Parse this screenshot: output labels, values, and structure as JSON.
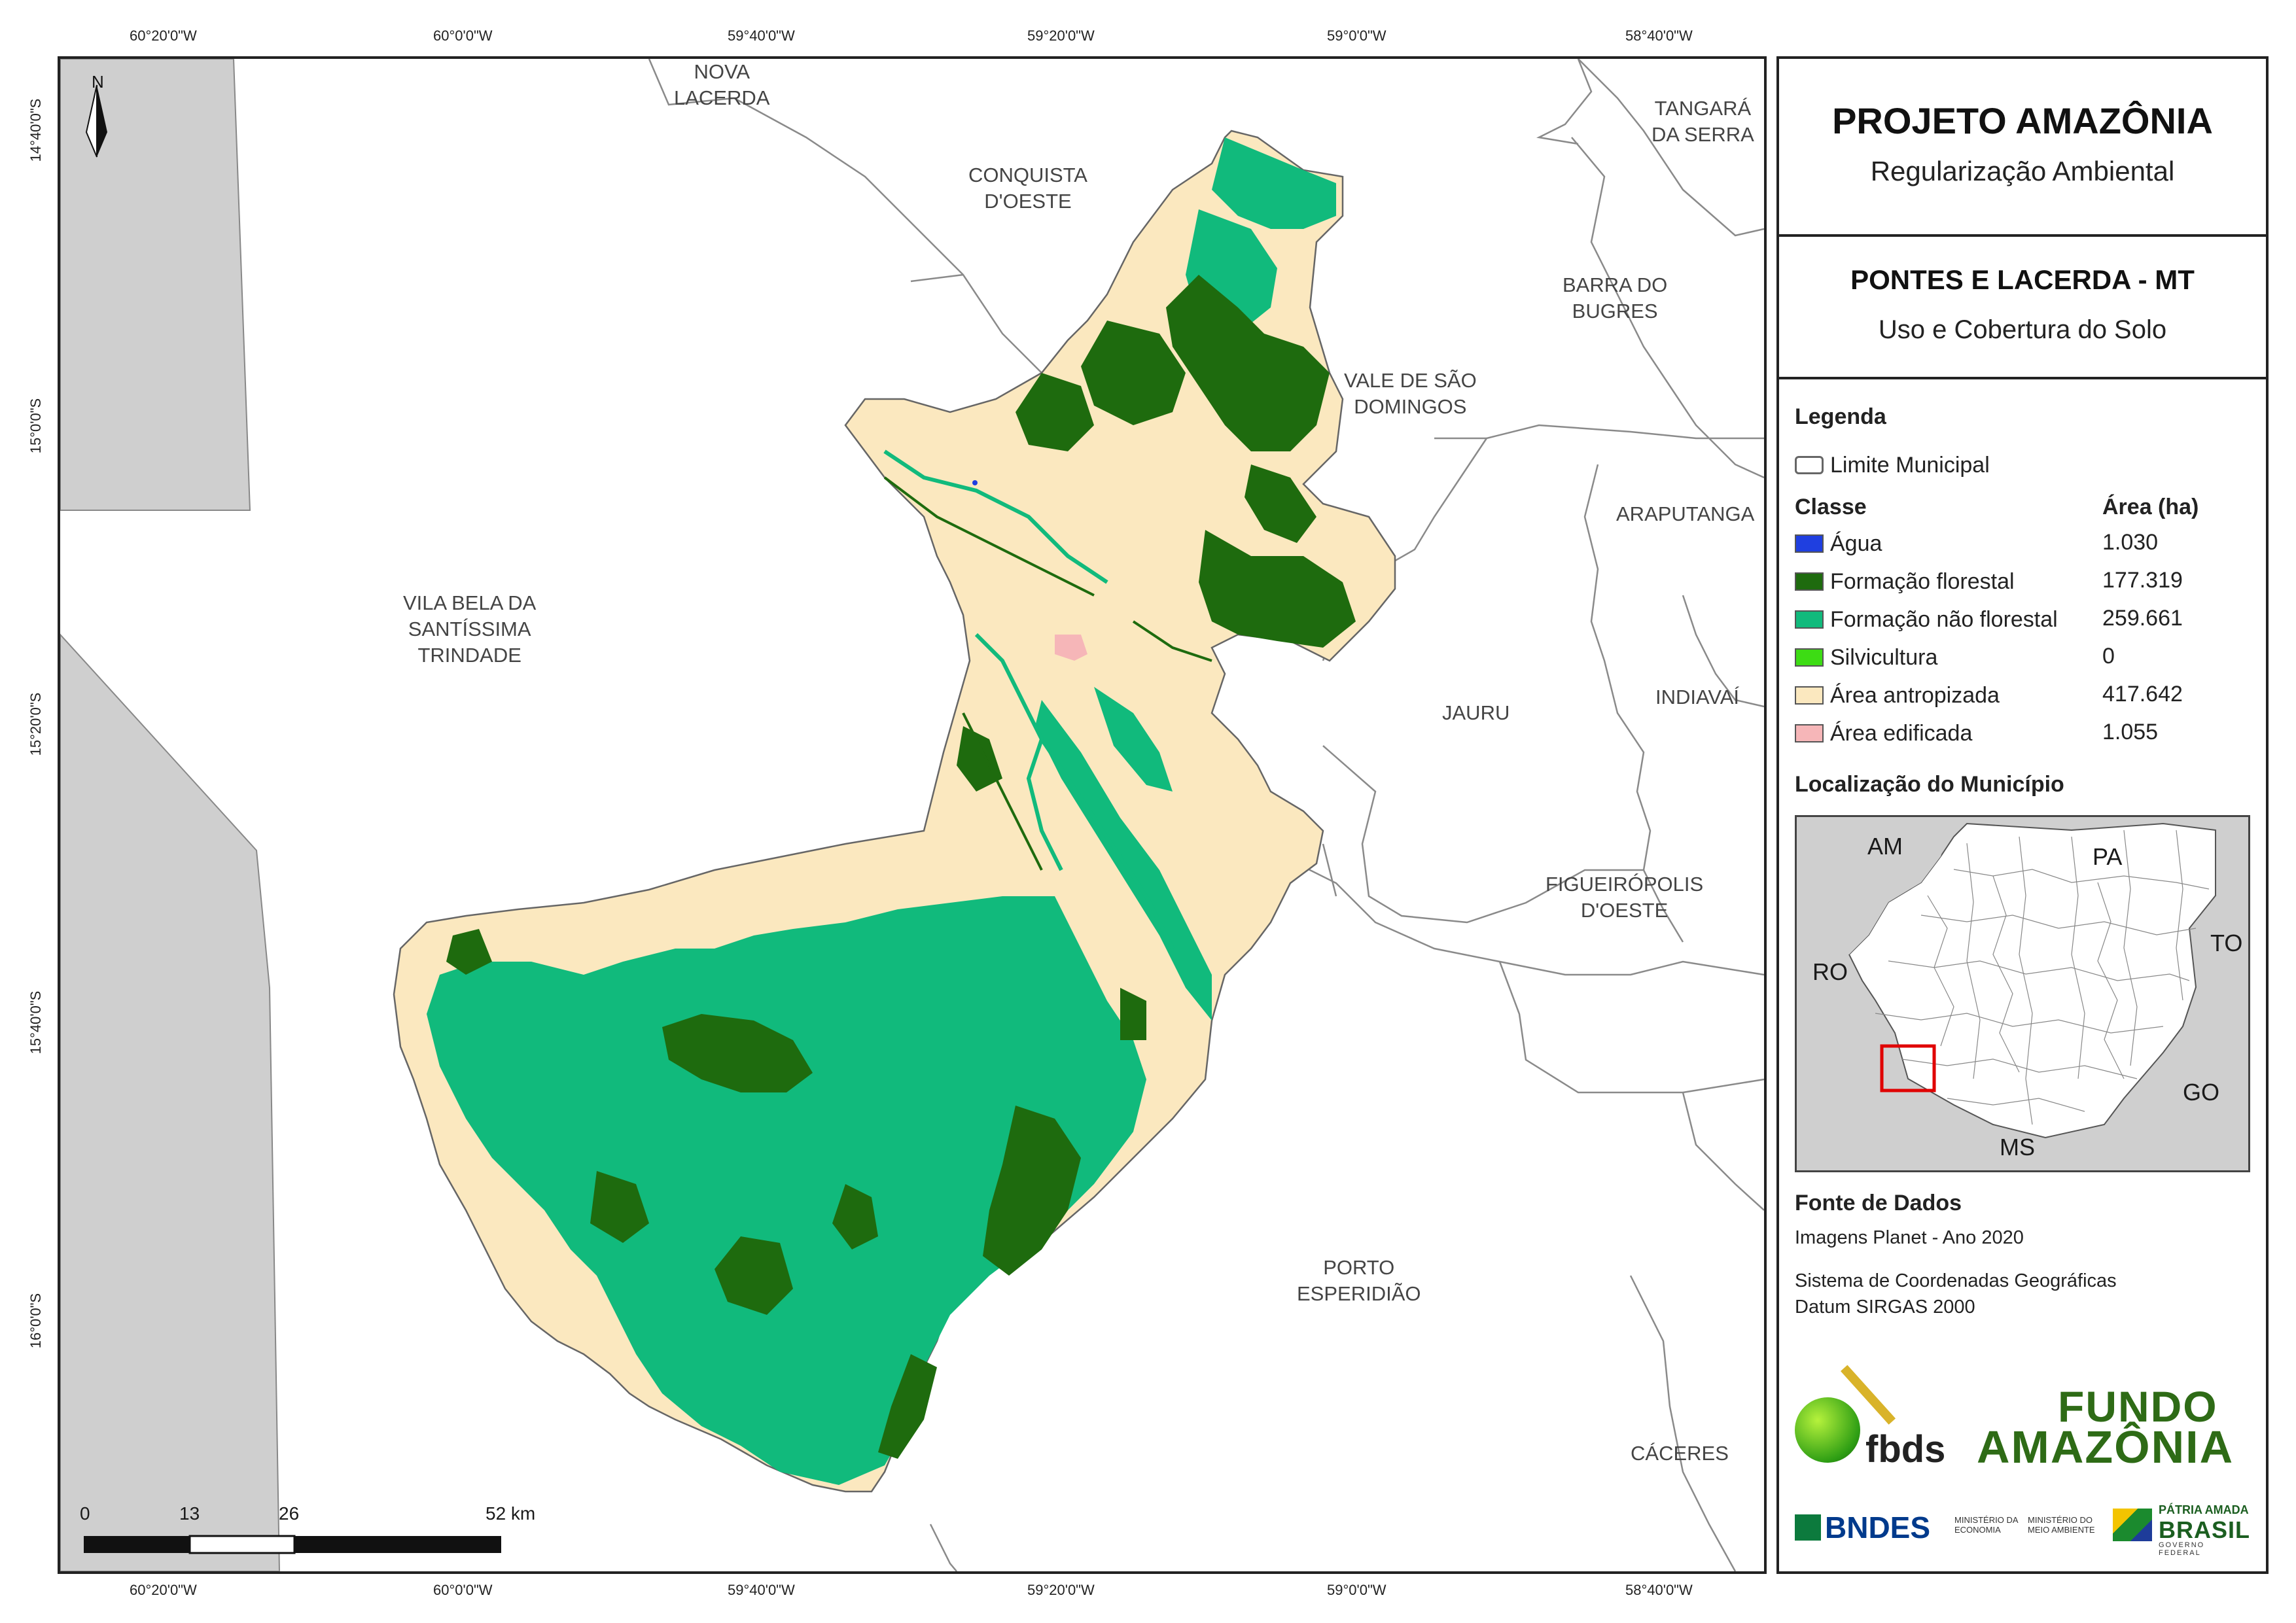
{
  "top_coords": [
    "60°20'0\"W",
    "60°0'0\"W",
    "59°40'0\"W",
    "59°20'0\"W",
    "59°0'0\"W",
    "58°40'0\"W"
  ],
  "bottom_coords": [
    "60°20'0\"W",
    "60°0'0\"W",
    "59°40'0\"W",
    "59°20'0\"W",
    "59°0'0\"W",
    "58°40'0\"W"
  ],
  "left_coords": [
    "14°40'0\"S",
    "15°0'0\"S",
    "15°20'0\"S",
    "15°40'0\"S",
    "16°0'0\"S"
  ],
  "north_label": "N",
  "municipalities": {
    "nova_lacerda": [
      "NOVA",
      "LACERDA"
    ],
    "conquista": [
      "CONQUISTA",
      "D'OESTE"
    ],
    "tangara": [
      "TANGARÁ",
      "DA SERRA"
    ],
    "barra": [
      "BARRA DO",
      "BUGRES"
    ],
    "vale": [
      "VALE DE SÃO",
      "DOMINGOS"
    ],
    "arapu": "ARAPUTANGA",
    "vila_bela": [
      "VILA BELA DA",
      "SANTÍSSIMA",
      "TRINDADE"
    ],
    "jauru": "JAURU",
    "indiavai": "INDIAVAÍ",
    "figueiro": [
      "FIGUEIRÓPOLIS",
      "D'OESTE"
    ],
    "porto": [
      "PORTO",
      "ESPERIDIÃO"
    ],
    "caceres": "CÁCERES"
  },
  "scalebar": {
    "ticks": [
      "0",
      "13",
      "26",
      "52 km"
    ]
  },
  "header": {
    "title": "PROJETO AMAZÔNIA",
    "subtitle": "Regularização Ambiental"
  },
  "municipio": {
    "title": "PONTES E LACERDA - MT",
    "subtitle": "Uso e Cobertura do Solo"
  },
  "legend": {
    "heading": "Legenda",
    "limite_label": "Limite Municipal",
    "classe_heading": "Classe",
    "area_heading": "Área (ha)",
    "classes": [
      {
        "label": "Água",
        "area": "1.030",
        "color": "#1f3fe0"
      },
      {
        "label": "Formação florestal",
        "area": "177.319",
        "color": "#1e6b0e"
      },
      {
        "label": "Formação não florestal",
        "area": "259.661",
        "color": "#11ba7c"
      },
      {
        "label": "Silvicultura",
        "area": "0",
        "color": "#3ddc14"
      },
      {
        "label": "Área antropizada",
        "area": "417.642",
        "color": "#fbe8bf"
      },
      {
        "label": "Área edificada",
        "area": "1.055",
        "color": "#f6b6b8"
      }
    ]
  },
  "location": {
    "heading": "Localização do Município",
    "states": {
      "am": "AM",
      "pa": "PA",
      "to": "TO",
      "ro": "RO",
      "go": "GO",
      "ms": "MS"
    }
  },
  "fonte": {
    "heading": "Fonte de Dados",
    "line1": "Imagens Planet - Ano 2020",
    "line2": "Sistema de Coordenadas Geográficas",
    "line3": "Datum SIRGAS 2000"
  },
  "logos": {
    "fbds": "fbds",
    "fundo1": "FUNDO",
    "fundo2": "AMAZÔNIA",
    "bndes": "BNDES",
    "min_economia": "MINISTÉRIO DA ECONOMIA",
    "min_meio": "MINISTÉRIO DO MEIO AMBIENTE",
    "patria": "PÁTRIA AMADA",
    "brasil": "BRASIL",
    "gov": "GOVERNO FEDERAL"
  }
}
